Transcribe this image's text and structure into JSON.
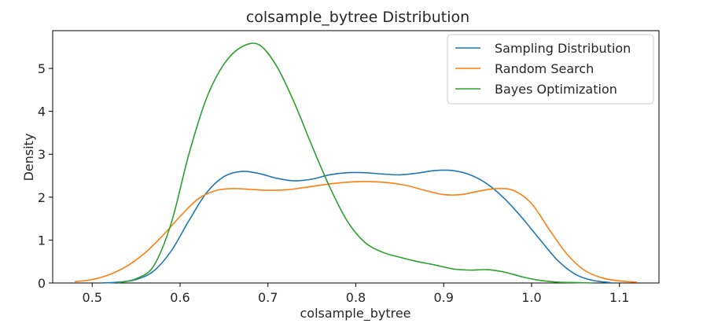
{
  "chart_data": {
    "type": "line",
    "title": "colsample_bytree Distribution",
    "xlabel": "colsample_bytree",
    "ylabel": "Density",
    "xlim": [
      0.455,
      1.145
    ],
    "ylim": [
      0,
      5.88
    ],
    "xticks": [
      "0.5",
      "0.6",
      "0.7",
      "0.8",
      "0.9",
      "1.0",
      "1.1"
    ],
    "yticks": [
      "0",
      "1",
      "2",
      "3",
      "4",
      "5"
    ],
    "grid": false,
    "legend_position": "top-right",
    "series": [
      {
        "name": "Sampling Distribution",
        "color": "#1f77b4",
        "x": [
          0.51,
          0.53,
          0.55,
          0.57,
          0.59,
          0.61,
          0.63,
          0.65,
          0.67,
          0.69,
          0.71,
          0.73,
          0.75,
          0.77,
          0.79,
          0.81,
          0.83,
          0.85,
          0.87,
          0.89,
          0.91,
          0.93,
          0.95,
          0.97,
          0.99,
          1.01,
          1.03,
          1.05,
          1.07,
          1.09
        ],
        "y": [
          0.0,
          0.02,
          0.08,
          0.28,
          0.75,
          1.45,
          2.1,
          2.48,
          2.6,
          2.55,
          2.44,
          2.38,
          2.42,
          2.52,
          2.57,
          2.57,
          2.54,
          2.52,
          2.56,
          2.62,
          2.62,
          2.52,
          2.3,
          1.95,
          1.5,
          1.0,
          0.52,
          0.2,
          0.06,
          0.01
        ]
      },
      {
        "name": "Random Search",
        "color": "#ff7f0e",
        "x": [
          0.48,
          0.5,
          0.52,
          0.54,
          0.56,
          0.58,
          0.6,
          0.62,
          0.64,
          0.66,
          0.68,
          0.7,
          0.72,
          0.74,
          0.76,
          0.78,
          0.8,
          0.82,
          0.84,
          0.86,
          0.88,
          0.9,
          0.92,
          0.94,
          0.96,
          0.98,
          1.0,
          1.02,
          1.04,
          1.06,
          1.08,
          1.1,
          1.12
        ],
        "y": [
          0.03,
          0.08,
          0.2,
          0.4,
          0.7,
          1.1,
          1.55,
          1.95,
          2.15,
          2.2,
          2.18,
          2.16,
          2.17,
          2.22,
          2.28,
          2.33,
          2.36,
          2.36,
          2.33,
          2.26,
          2.15,
          2.06,
          2.06,
          2.14,
          2.2,
          2.15,
          1.85,
          1.25,
          0.68,
          0.3,
          0.12,
          0.05,
          0.02
        ]
      },
      {
        "name": "Bayes Optimization",
        "color": "#2ca02c",
        "x": [
          0.53,
          0.55,
          0.57,
          0.59,
          0.61,
          0.63,
          0.65,
          0.67,
          0.69,
          0.71,
          0.73,
          0.75,
          0.77,
          0.79,
          0.81,
          0.83,
          0.85,
          0.87,
          0.89,
          0.91,
          0.93,
          0.95,
          0.97,
          0.99,
          1.01,
          1.03,
          1.05,
          1.07
        ],
        "y": [
          0.01,
          0.1,
          0.4,
          1.4,
          3.0,
          4.3,
          5.1,
          5.5,
          5.55,
          5.05,
          4.2,
          3.2,
          2.25,
          1.45,
          0.95,
          0.72,
          0.6,
          0.5,
          0.42,
          0.33,
          0.3,
          0.31,
          0.25,
          0.14,
          0.06,
          0.02,
          0.01,
          0.0
        ]
      }
    ]
  }
}
